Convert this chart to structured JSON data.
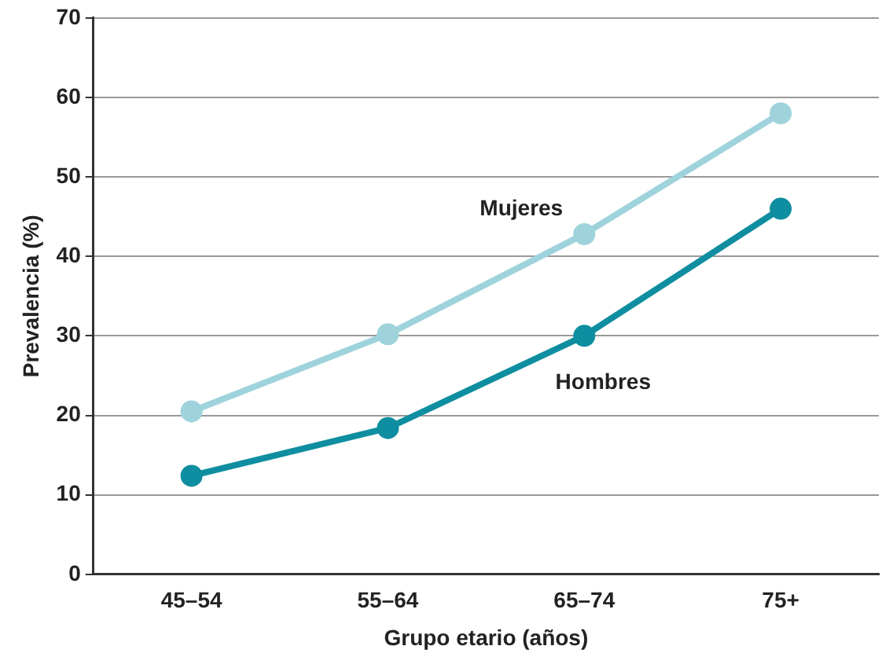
{
  "chart_data": {
    "type": "line",
    "xlabel": "Grupo etario (años)",
    "ylabel": "Prevalencia (%)",
    "categories": [
      "45–54",
      "55–64",
      "65–74",
      "75+"
    ],
    "series": [
      {
        "name": "Mujeres",
        "color": "#9fd3dc",
        "values": [
          20.5,
          30.2,
          42.8,
          58
        ]
      },
      {
        "name": "Hombres",
        "color": "#0e8ea0",
        "values": [
          12.4,
          18.4,
          30,
          46
        ]
      }
    ],
    "ylim": [
      0,
      70
    ],
    "yticks": [
      0,
      10,
      20,
      30,
      40,
      50,
      60,
      70
    ],
    "grid": "y",
    "legend": false,
    "marker": "circle",
    "line_style": "solid"
  }
}
